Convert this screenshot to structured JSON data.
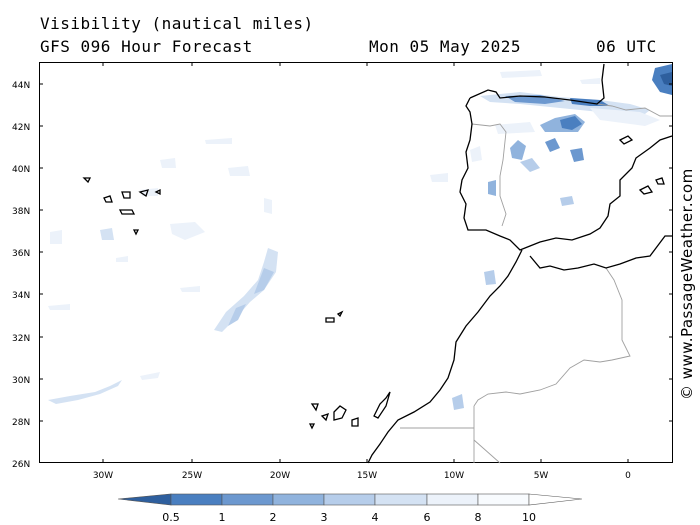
{
  "header": {
    "title": "Visibility (nautical miles)",
    "subtitle": "GFS 096 Hour Forecast",
    "date": "Mon 05 May 2025",
    "time": "06 UTC"
  },
  "credit": "© www.PassageWeather.com",
  "map": {
    "projection": "mercator",
    "lon_range": [
      -35,
      3
    ],
    "lat_range": [
      26,
      45
    ],
    "lat_labels": [
      "44N",
      "42N",
      "40N",
      "38N",
      "36N",
      "34N",
      "32N",
      "30N",
      "28N",
      "26N"
    ],
    "lon_labels": [
      "30W",
      "25W",
      "20W",
      "15W",
      "10W",
      "5W",
      "0"
    ],
    "coast_color": "#000000",
    "border_color": "#a0a0a0"
  },
  "colorbar": {
    "labels": [
      "0.5",
      "1",
      "2",
      "3",
      "4",
      "6",
      "8",
      "10"
    ],
    "colors": [
      "#2e5f9e",
      "#4a7fc0",
      "#6c98cf",
      "#90b3dd",
      "#b6cdea",
      "#d4e2f3",
      "#ecf2fa",
      "#ffffff"
    ]
  }
}
